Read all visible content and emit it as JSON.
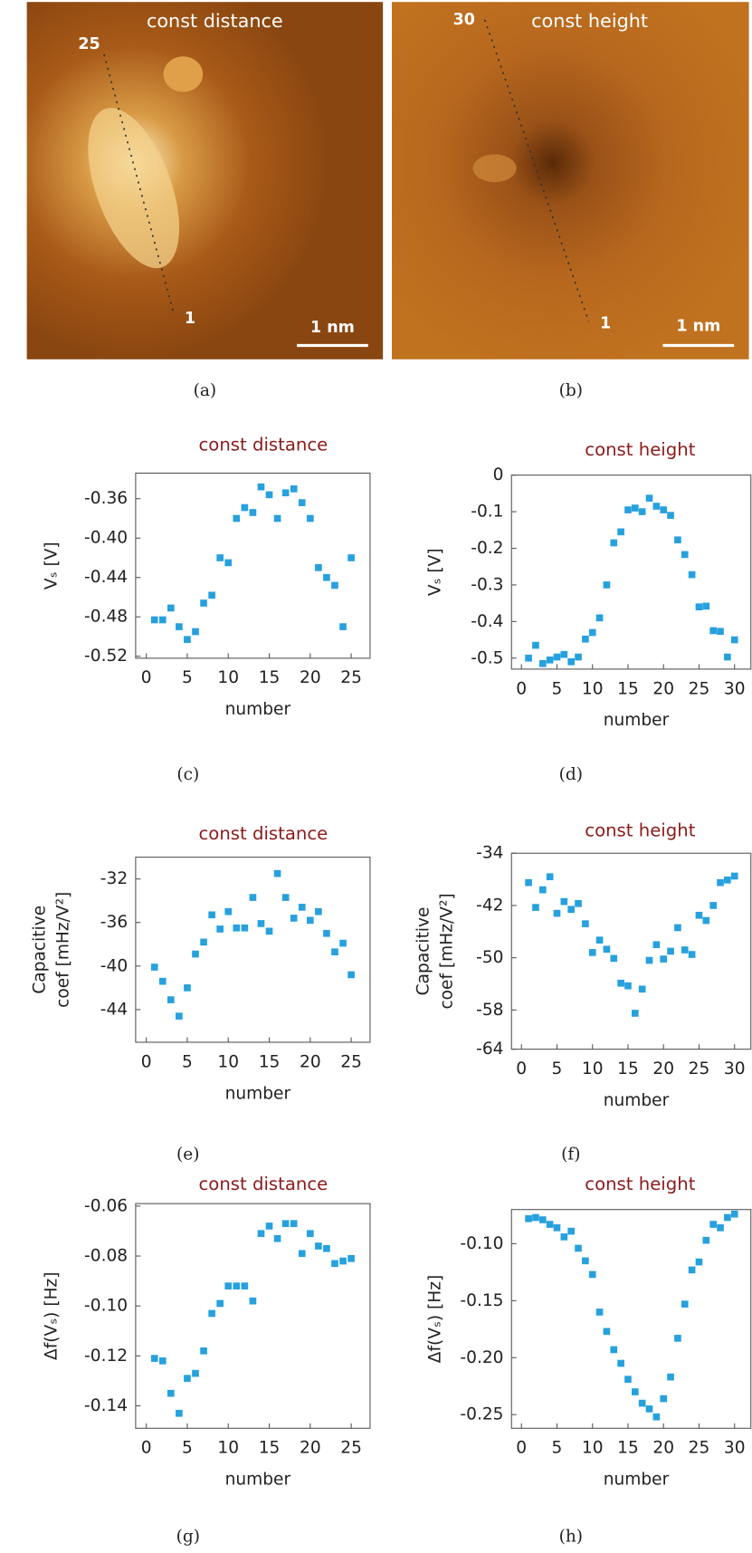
{
  "images": [
    {
      "title": "const distance",
      "start_label": "25",
      "end_label": "1",
      "scale_label": "1 nm",
      "caption": "(a)"
    },
    {
      "title": "const height",
      "start_label": "30",
      "end_label": "1",
      "scale_label": "1 nm",
      "caption": "(b)"
    }
  ],
  "chart_data": [
    {
      "type": "scatter",
      "title": "const distance",
      "xlabel": "number",
      "ylabel": "Vₛ [V]",
      "caption": "(c)",
      "color": "#27a1de",
      "x": [
        1,
        2,
        3,
        4,
        5,
        6,
        7,
        8,
        9,
        10,
        11,
        12,
        13,
        14,
        15,
        16,
        17,
        18,
        19,
        20,
        21,
        22,
        23,
        24,
        25
      ],
      "values": [
        -0.483,
        -0.483,
        -0.471,
        -0.49,
        -0.503,
        -0.495,
        -0.466,
        -0.458,
        -0.42,
        -0.425,
        -0.38,
        -0.369,
        -0.374,
        -0.348,
        -0.356,
        -0.38,
        -0.354,
        -0.35,
        -0.364,
        -0.38,
        -0.43,
        -0.44,
        -0.448,
        -0.49,
        -0.42
      ],
      "xlim": [
        -1.3,
        27.3
      ],
      "xticks": [
        0,
        5,
        10,
        15,
        20,
        25
      ],
      "ylim": [
        -0.522,
        -0.334
      ],
      "yticks": [
        {
          "value": -0.36,
          "label": "-0.36"
        },
        {
          "value": -0.4,
          "label": "-0.40"
        },
        {
          "value": -0.44,
          "label": "-0.44"
        },
        {
          "value": -0.48,
          "label": "-0.48"
        },
        {
          "value": -0.52,
          "label": "-0.52"
        }
      ]
    },
    {
      "type": "scatter",
      "title": "const height",
      "xlabel": "number",
      "ylabel": "Vₛ [V]",
      "caption": "(d)",
      "color": "#27a1de",
      "x": [
        1,
        2,
        3,
        4,
        5,
        6,
        7,
        8,
        9,
        10,
        11,
        12,
        13,
        14,
        15,
        16,
        17,
        18,
        19,
        20,
        21,
        22,
        23,
        24,
        25,
        26,
        27,
        28,
        29,
        30
      ],
      "values": [
        -0.5,
        -0.465,
        -0.515,
        -0.505,
        -0.497,
        -0.49,
        -0.51,
        -0.497,
        -0.448,
        -0.43,
        -0.39,
        -0.3,
        -0.185,
        -0.155,
        -0.095,
        -0.09,
        -0.1,
        -0.063,
        -0.085,
        -0.095,
        -0.11,
        -0.177,
        -0.217,
        -0.272,
        -0.36,
        -0.358,
        -0.425,
        -0.427,
        -0.497,
        -0.45
      ],
      "xlim": [
        -1.4,
        32.3
      ],
      "xticks": [
        0,
        5,
        10,
        15,
        20,
        25,
        30
      ],
      "ylim": [
        -0.53,
        0
      ],
      "yticks": [
        0,
        -0.1,
        -0.2,
        -0.3,
        -0.4,
        -0.5
      ]
    },
    {
      "type": "scatter",
      "title": "const distance",
      "xlabel": "number",
      "ylabel": [
        "Capacitive",
        "coef [mHz/V²]"
      ],
      "caption": "(e)",
      "color": "#27a1de",
      "x": [
        1,
        2,
        3,
        4,
        5,
        6,
        7,
        8,
        9,
        10,
        11,
        12,
        13,
        14,
        15,
        16,
        17,
        18,
        19,
        20,
        21,
        22,
        23,
        24,
        25
      ],
      "values": [
        -40.1,
        -41.4,
        -43.1,
        -44.6,
        -42.0,
        -38.9,
        -37.8,
        -35.3,
        -36.6,
        -35.0,
        -36.5,
        -36.5,
        -33.7,
        -36.1,
        -36.8,
        -31.5,
        -33.7,
        -35.6,
        -34.6,
        -35.8,
        -35.0,
        -37.0,
        -38.7,
        -37.9,
        -40.8
      ],
      "xlim": [
        -1.3,
        27.3
      ],
      "xticks": [
        0,
        5,
        10,
        15,
        20,
        25
      ],
      "ylim": [
        -47,
        -30
      ],
      "yticks": [
        -32,
        -36,
        -40,
        -44
      ]
    },
    {
      "type": "scatter",
      "title": "const height",
      "xlabel": "number",
      "ylabel": [
        "Capacitive",
        "coef [mHz/V²]"
      ],
      "caption": "(f)",
      "color": "#27a1de",
      "x": [
        1,
        2,
        3,
        4,
        5,
        6,
        7,
        8,
        9,
        10,
        11,
        12,
        13,
        14,
        15,
        16,
        17,
        18,
        19,
        20,
        21,
        22,
        23,
        24,
        25,
        26,
        27,
        28,
        29,
        30
      ],
      "values": [
        -38.5,
        -42.3,
        -39.6,
        -37.6,
        -43.2,
        -41.4,
        -42.6,
        -41.7,
        -44.8,
        -49.2,
        -47.3,
        -48.7,
        -50.1,
        -53.9,
        -54.3,
        -58.5,
        -54.8,
        -50.4,
        -48.0,
        -50.2,
        -49.0,
        -45.4,
        -48.8,
        -49.5,
        -43.5,
        -44.3,
        -42.0,
        -38.5,
        -38.1,
        -37.5
      ],
      "xlim": [
        -1.4,
        32.3
      ],
      "xticks": [
        0,
        5,
        10,
        15,
        20,
        25,
        30
      ],
      "ylim": [
        -64,
        -34
      ],
      "yticks": [
        -34,
        -42,
        -50,
        -58,
        -64
      ]
    },
    {
      "type": "scatter",
      "title": "const distance",
      "xlabel": "number",
      "ylabel": "Δf(Vₛ) [Hz]",
      "caption": "(g)",
      "color": "#27a1de",
      "x": [
        1,
        2,
        3,
        4,
        5,
        6,
        7,
        8,
        9,
        10,
        11,
        12,
        13,
        14,
        15,
        16,
        17,
        18,
        19,
        20,
        21,
        22,
        23,
        24,
        25
      ],
      "values": [
        -0.121,
        -0.122,
        -0.135,
        -0.143,
        -0.129,
        -0.127,
        -0.118,
        -0.103,
        -0.099,
        -0.092,
        -0.092,
        -0.092,
        -0.098,
        -0.071,
        -0.068,
        -0.073,
        -0.067,
        -0.067,
        -0.079,
        -0.071,
        -0.076,
        -0.077,
        -0.083,
        -0.082,
        -0.081
      ],
      "xlim": [
        -1.3,
        27.3
      ],
      "xticks": [
        0,
        5,
        10,
        15,
        20,
        25
      ],
      "ylim": [
        -0.149,
        -0.059
      ],
      "yticks": [
        -0.06,
        -0.08,
        {
          "value": -0.1,
          "label": "-0.10"
        },
        -0.12,
        -0.14
      ]
    },
    {
      "type": "scatter",
      "title": "const height",
      "xlabel": "number",
      "ylabel": "Δf(Vₛ) [Hz]",
      "caption": "(h)",
      "color": "#27a1de",
      "x": [
        1,
        2,
        3,
        4,
        5,
        6,
        7,
        8,
        9,
        10,
        11,
        12,
        13,
        14,
        15,
        16,
        17,
        18,
        19,
        20,
        21,
        22,
        23,
        24,
        25,
        26,
        27,
        28,
        29,
        30
      ],
      "values": [
        -0.078,
        -0.077,
        -0.079,
        -0.083,
        -0.086,
        -0.094,
        -0.089,
        -0.104,
        -0.115,
        -0.127,
        -0.16,
        -0.177,
        -0.193,
        -0.205,
        -0.219,
        -0.23,
        -0.24,
        -0.245,
        -0.252,
        -0.236,
        -0.217,
        -0.183,
        -0.153,
        -0.123,
        -0.116,
        -0.097,
        -0.083,
        -0.086,
        -0.077,
        -0.074
      ],
      "xlim": [
        -1.4,
        32.3
      ],
      "xticks": [
        0,
        5,
        10,
        15,
        20,
        25,
        30
      ],
      "ylim": [
        -0.262,
        -0.07
      ],
      "yticks": [
        {
          "value": -0.1,
          "label": "-0.10"
        },
        -0.15,
        {
          "value": -0.2,
          "label": "-0.20"
        },
        -0.25
      ]
    }
  ]
}
